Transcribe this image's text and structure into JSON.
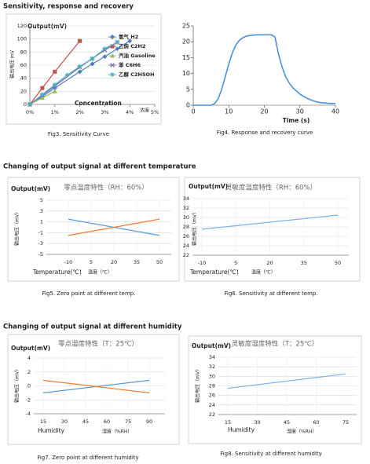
{
  "headings": [
    "Sensitivity, response and recovery",
    "Changing of output signal at different temperature",
    "Changing of output signal at different humidity"
  ],
  "figures": [
    {
      "type": "line",
      "ylabel": "Output(mV)",
      "ylabel_vertical": "输出电压 mV",
      "xlabel": "Concentration",
      "xlabel_cn": "浓度",
      "xlim": [
        0,
        5
      ],
      "ylim": [
        0,
        120
      ],
      "xticks": [
        {
          "value": 0,
          "label": "0%"
        },
        {
          "value": 1,
          "label": "1%"
        },
        {
          "value": 2,
          "label": "2%"
        },
        {
          "value": 3,
          "label": "3%"
        },
        {
          "value": 4,
          "label": "4%"
        },
        {
          "value": 5,
          "label": "5%"
        }
      ],
      "yticks": [
        0,
        20,
        40,
        60,
        80,
        100,
        120
      ],
      "grid": true,
      "legend": true,
      "series": [
        {
          "name": "氢气 H2",
          "color": "#4f81bd",
          "marker": "diamond",
          "x": [
            0,
            0.5,
            1,
            2,
            2.5,
            3,
            3.5,
            4
          ],
          "values": [
            0,
            12,
            25,
            50,
            62,
            73,
            85,
            97
          ]
        },
        {
          "name": "乙炔 C2H2",
          "color": "#c0504d",
          "marker": "square",
          "x": [
            0,
            0.5,
            1,
            2
          ],
          "values": [
            0,
            25,
            50,
            97
          ]
        },
        {
          "name": "汽油 Gasoline",
          "color": "#9bbb59",
          "marker": "triangle",
          "x": [
            0,
            0.5,
            1
          ],
          "values": [
            0,
            10,
            20
          ]
        },
        {
          "name": "苯 C6H6",
          "color": "#8064a2",
          "marker": "cross",
          "x": [
            0,
            0.5,
            1,
            2,
            2.5,
            3,
            3.5
          ],
          "values": [
            0,
            14,
            28,
            57,
            70,
            83,
            95
          ]
        },
        {
          "name": "乙醇 C2H5OH",
          "color": "#4bacc6",
          "marker": "star",
          "x": [
            0,
            0.5,
            1,
            1.5,
            2,
            2.5,
            3,
            3.5
          ],
          "values": [
            0,
            15,
            30,
            45,
            58,
            70,
            85,
            95
          ]
        }
      ],
      "caption": "Fig3. Sensitivity Curve"
    },
    {
      "type": "line",
      "xlabel": "Time (s)",
      "xlim": [
        0,
        40
      ],
      "ylim": [
        0,
        25
      ],
      "xticks": [
        0,
        10,
        20,
        30,
        40
      ],
      "yticks": [
        0,
        5,
        10,
        15,
        20,
        25
      ],
      "grid": false,
      "series": [
        {
          "color": "#4a90d9",
          "x": [
            0,
            5,
            6,
            7,
            8,
            9,
            10,
            11,
            12,
            13,
            14,
            15,
            16,
            18,
            20,
            22,
            23,
            24,
            25,
            26,
            27,
            28,
            29,
            30,
            31,
            32,
            33,
            34,
            35,
            36,
            38,
            40
          ],
          "values": [
            0,
            0,
            0.5,
            2,
            5,
            9,
            13,
            16.5,
            19,
            20.5,
            21.3,
            21.8,
            22,
            22.2,
            22.2,
            22.2,
            21.5,
            16,
            12,
            9,
            7,
            5.5,
            4.5,
            3.5,
            2.8,
            2.2,
            1.7,
            1.3,
            1,
            0.8,
            0.6,
            0.5
          ]
        }
      ],
      "caption": "Fig4. Response and recovery curve"
    },
    {
      "type": "line",
      "title": "零点温度特性（RH：60%）",
      "ylabel": "Output(mV)",
      "ylabel_vertical": "输出电压（mV）",
      "xlabel": "Temperature(℃)",
      "xlabel_cn": "温度（℃）",
      "xlim": [
        -10,
        50
      ],
      "ylim": [
        -5,
        5
      ],
      "xticks": [
        -10,
        5,
        20,
        35,
        50
      ],
      "yticks": [
        -5,
        -3,
        -1,
        1,
        3,
        5
      ],
      "grid": true,
      "series": [
        {
          "color": "#5b9bd5",
          "x": [
            -10,
            50
          ],
          "values": [
            1.5,
            -1.5
          ]
        },
        {
          "color": "#ed7d31",
          "x": [
            -10,
            50
          ],
          "values": [
            -1.5,
            1.5
          ]
        }
      ],
      "caption": "Fig5. Zero point at different temp."
    },
    {
      "type": "line",
      "title": "灵敏度温度特性（RH：60%）",
      "ylabel": "Output(mV)",
      "ylabel_vertical": "输出电压（mV）",
      "xlabel": "Temperature(℃)",
      "xlabel_cn": "温度（℃）",
      "xlim": [
        -10,
        50
      ],
      "ylim": [
        22,
        34
      ],
      "xticks": [
        -10,
        5,
        20,
        35,
        50
      ],
      "yticks": [
        22,
        24,
        26,
        28,
        30,
        32,
        34
      ],
      "grid": true,
      "series": [
        {
          "color": "#7fb2e0",
          "x": [
            -10,
            50
          ],
          "values": [
            27.5,
            30.5
          ]
        }
      ],
      "caption": "Fig6. Sensitivity at different temp."
    },
    {
      "type": "line",
      "title": "零点湿度特性（T：25℃）",
      "ylabel": "Output(mV)",
      "ylabel_vertical": "输出电压（mV）",
      "xlabel": "Humidity",
      "xlabel_cn": "湿度（%RH）",
      "xlim": [
        15,
        90
      ],
      "ylim": [
        -4,
        4
      ],
      "xticks": [
        15,
        30,
        45,
        60,
        75,
        90
      ],
      "yticks": [
        -4,
        -2,
        0,
        2,
        4
      ],
      "grid": true,
      "series": [
        {
          "color": "#5b9bd5",
          "x": [
            15,
            90
          ],
          "values": [
            -1,
            0.8
          ]
        },
        {
          "color": "#ed7d31",
          "x": [
            15,
            90
          ],
          "values": [
            0.8,
            -1
          ]
        }
      ],
      "caption": "Fig7. Zero point at different humidity"
    },
    {
      "type": "line",
      "title": "灵敏度湿度特性（T：25℃）",
      "ylabel": "Output(mV)",
      "ylabel_vertical": "输出电压（mV）",
      "xlabel": "Humidity",
      "xlabel_cn": "湿度（%RH）",
      "xlim": [
        15,
        75
      ],
      "ylim": [
        22,
        34
      ],
      "xticks": [
        15,
        30,
        45,
        60,
        75
      ],
      "yticks": [
        22,
        24,
        26,
        28,
        30,
        32,
        34
      ],
      "grid": true,
      "series": [
        {
          "color": "#7fb2e0",
          "x": [
            15,
            75
          ],
          "values": [
            27.5,
            30.5
          ]
        }
      ],
      "caption": "Fig8. Sensitivity at different humidity"
    }
  ]
}
